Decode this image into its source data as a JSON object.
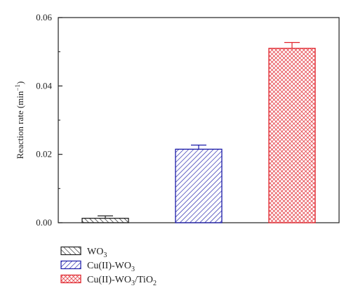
{
  "chart_data": {
    "type": "bar",
    "categories": [
      "WO3",
      "Cu(II)-WO3",
      "Cu(II)-WO3/TiO2"
    ],
    "values": [
      0.0013,
      0.0215,
      0.051
    ],
    "errors": [
      0.0007,
      0.0012,
      0.0017
    ],
    "ylabel": "Reaction rate (min⁻¹)",
    "ylabel_main": "Reaction rate (min",
    "ylabel_sup": "−1",
    "ylabel_close": ")",
    "ylim": [
      0,
      0.06
    ],
    "yticks": [
      "0.00",
      "0.02",
      "0.04",
      "0.06"
    ],
    "ytick_values": [
      0,
      0.02,
      0.04,
      0.06
    ],
    "grid": false,
    "legend_position": "bottom-left",
    "legend": [
      {
        "parts": [
          {
            "t": "WO"
          },
          {
            "t": "3",
            "sub": true
          }
        ]
      },
      {
        "parts": [
          {
            "t": "Cu(II)-WO"
          },
          {
            "t": "3",
            "sub": true
          }
        ]
      },
      {
        "parts": [
          {
            "t": "Cu(II)-WO"
          },
          {
            "t": "3",
            "sub": true
          },
          {
            "t": "/TiO"
          },
          {
            "t": "2",
            "sub": true
          }
        ]
      }
    ],
    "colors": [
      "#222222",
      "#1a1aa8",
      "#e0232b"
    ],
    "patterns": [
      "diagonal-right",
      "diagonal-left",
      "crosshatch"
    ]
  }
}
